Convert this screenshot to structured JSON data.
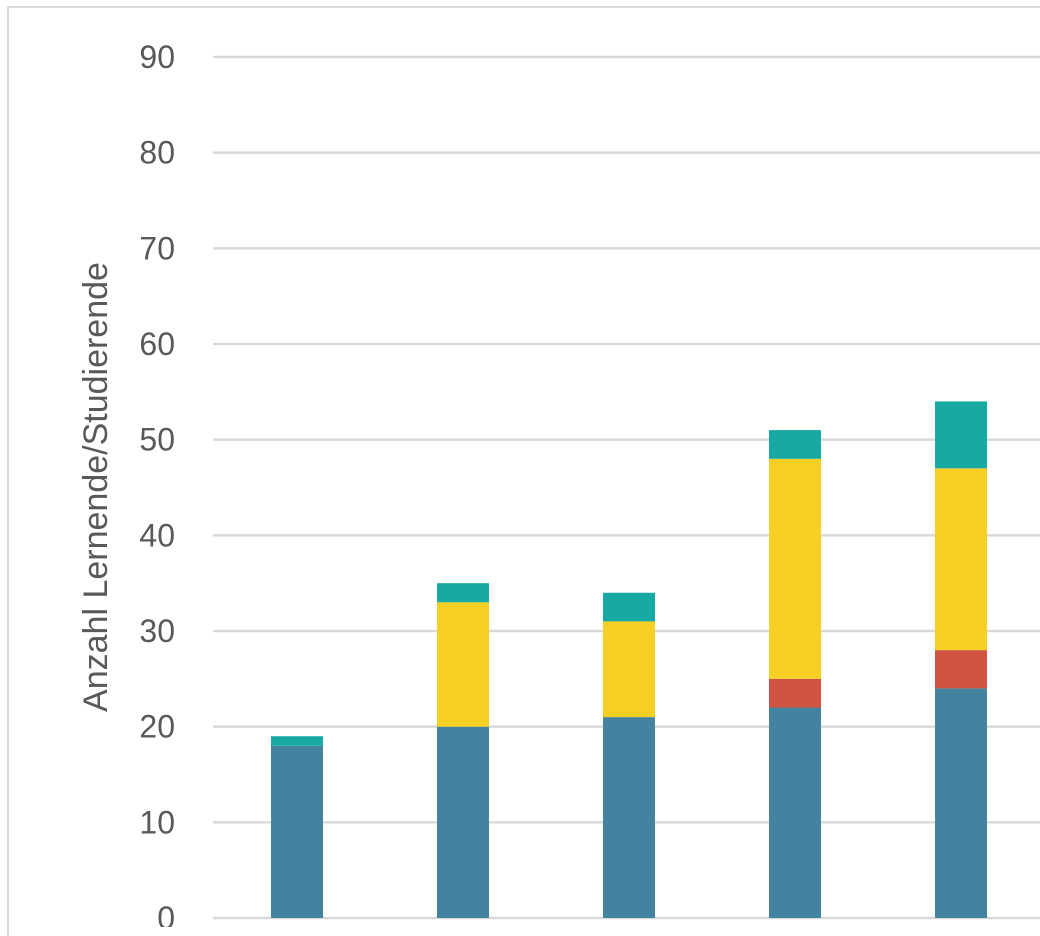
{
  "chart_data": {
    "type": "bar",
    "stacked": true,
    "ylabel": "Anzahl Lernende/Studierende",
    "ylim": [
      0,
      90
    ],
    "yticks": [
      0,
      10,
      20,
      30,
      40,
      50,
      60,
      70,
      80,
      90
    ],
    "grid": true,
    "categories": [
      "",
      "",
      "",
      "",
      ""
    ],
    "series": [
      {
        "color": "#4383a0",
        "values": [
          18,
          20,
          21,
          22,
          24
        ]
      },
      {
        "color": "#d05443",
        "values": [
          0,
          0,
          0,
          3,
          4
        ]
      },
      {
        "color": "#f8d023",
        "values": [
          0,
          13,
          10,
          23,
          19
        ]
      },
      {
        "color": "#17a9a2",
        "values": [
          1,
          2,
          3,
          3,
          7
        ]
      }
    ]
  }
}
